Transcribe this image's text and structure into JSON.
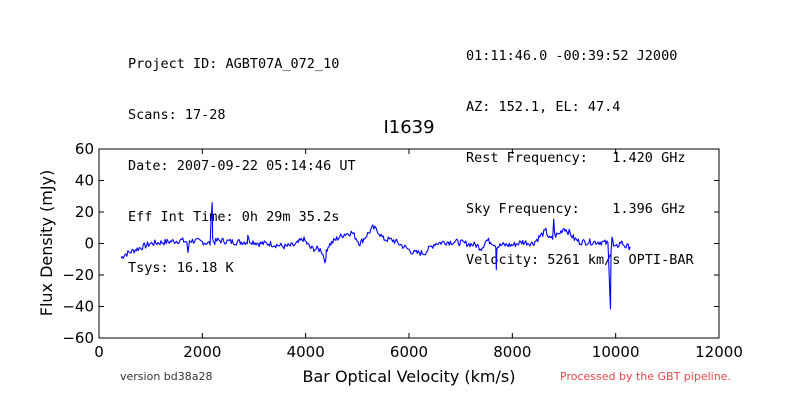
{
  "header_left": [
    "Project ID: AGBT07A_072_10",
    "Scans: 17-28",
    "Date: 2007-09-22 05:14:46 UT",
    "Eff Int Time: 0h 29m 35.2s",
    "Tsys: 16.18 K"
  ],
  "header_right": [
    "01:11:46.0 -00:39:52 J2000",
    "AZ: 152.1, EL: 47.4",
    "Rest Frequency:   1.420 GHz",
    "Sky Frequency:    1.396 GHz",
    "Velocity: 5261 km/s OPTI-BAR"
  ],
  "footer": {
    "version": "version bd38a28",
    "pipeline": "Processed by the GBT pipeline."
  },
  "colors": {
    "line": "#0000ff",
    "pipeline_text": "#e8474a"
  },
  "chart_data": {
    "type": "line",
    "title": "I1639",
    "xlabel": "Bar Optical Velocity (km/s)",
    "ylabel": "Flux Density (mJy)",
    "xlim": [
      0,
      12000
    ],
    "ylim": [
      -60,
      60
    ],
    "xticks": [
      0,
      2000,
      4000,
      6000,
      8000,
      10000,
      12000
    ],
    "yticks": [
      -60,
      -40,
      -20,
      0,
      20,
      40,
      60
    ],
    "xtick_labels": [
      "0",
      "2000",
      "4000",
      "6000",
      "8000",
      "10000",
      "12000"
    ],
    "ytick_labels": [
      "−60",
      "−40",
      "−20",
      "0",
      "20",
      "40",
      "60"
    ],
    "grid": false,
    "series": [
      {
        "color": "#0000ff",
        "x": [
          430,
          500,
          700,
          1000,
          1300,
          1600,
          1700,
          1720,
          1750,
          2000,
          2150,
          2190,
          2200,
          2210,
          2240,
          2300,
          2600,
          2870,
          2880,
          2900,
          3100,
          3300,
          3600,
          3800,
          3950,
          4100,
          4300,
          4390,
          4400,
          4450,
          4600,
          4750,
          4900,
          5050,
          5200,
          5300,
          5400,
          5500,
          5700,
          5900,
          6100,
          6300,
          6500,
          6700,
          6900,
          7100,
          7300,
          7400,
          7500,
          7600,
          7680,
          7690,
          7700,
          7800,
          8000,
          8200,
          8400,
          8550,
          8650,
          8720,
          8780,
          8800,
          8820,
          8900,
          9000,
          9100,
          9200,
          9300,
          9500,
          9700,
          9850,
          9900,
          9910,
          9930,
          9960,
          10000,
          10100,
          10200,
          10280
        ],
        "y": [
          -9,
          -7,
          -4,
          0,
          1,
          2,
          1,
          -7,
          2,
          1,
          0,
          28,
          4,
          1,
          1,
          2,
          1,
          1,
          6,
          2,
          0,
          0,
          -2,
          -1,
          3,
          -3,
          -4,
          -12,
          -4,
          -1,
          3,
          6,
          7,
          0,
          6,
          10,
          8,
          3,
          2,
          -2,
          -6,
          -6,
          0,
          1,
          1,
          0,
          -1,
          -3,
          2,
          1,
          -1,
          -16,
          -2,
          -1,
          -1,
          1,
          0,
          5,
          8,
          3,
          3,
          16,
          5,
          6,
          10,
          7,
          3,
          1,
          1,
          1,
          0,
          -40,
          -5,
          4,
          -2,
          -3,
          1,
          -2,
          -2
        ]
      }
    ]
  }
}
